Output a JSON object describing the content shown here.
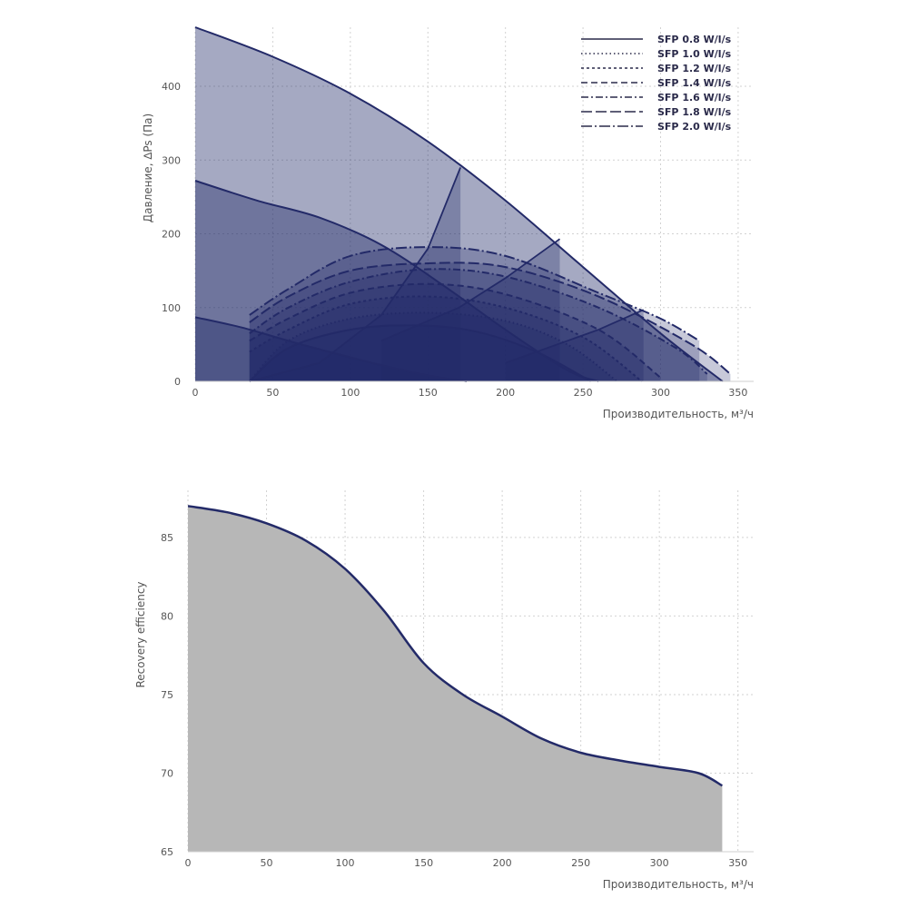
{
  "chart_data": [
    {
      "type": "area",
      "xlabel": "Производительность, м³/ч",
      "ylabel": "Давление, ∆Ps (Па)",
      "xlim": [
        0,
        360
      ],
      "ylim": [
        0,
        480
      ],
      "xticks": [
        0,
        50,
        100,
        150,
        200,
        250,
        300,
        350
      ],
      "yticks": [
        0,
        100,
        200,
        300,
        400
      ],
      "grid": true,
      "legend_position": "top-right",
      "colors": {
        "fill": "#1f2766",
        "line": "#232a68"
      },
      "fan_curves": [
        {
          "x": [
            0,
            50,
            100,
            150,
            200,
            250,
            300,
            340
          ],
          "y": [
            480,
            440,
            390,
            325,
            245,
            155,
            65,
            0
          ]
        },
        {
          "x": [
            0,
            40,
            80,
            120,
            160,
            200,
            240,
            260
          ],
          "y": [
            272,
            245,
            222,
            185,
            130,
            70,
            15,
            0
          ]
        },
        {
          "x": [
            0,
            30,
            60,
            90,
            120,
            150,
            175
          ],
          "y": [
            87,
            73,
            55,
            38,
            22,
            8,
            0
          ]
        }
      ],
      "system_curves": [
        {
          "x": [
            35,
            80,
            120,
            150,
            171,
            171
          ],
          "y": [
            0,
            25,
            90,
            180,
            290,
            0
          ]
        },
        {
          "x": [
            120,
            170,
            200,
            235,
            235
          ],
          "y": [
            55,
            100,
            140,
            193,
            0
          ]
        },
        {
          "x": [
            200,
            240,
            260,
            289,
            289
          ],
          "y": [
            25,
            55,
            70,
            97,
            0
          ]
        }
      ],
      "series": [
        {
          "name": "SFP 0.8 W/l/s",
          "x": [
            35,
            60,
            100,
            140,
            180,
            220,
            255
          ],
          "y": [
            0,
            45,
            70,
            76,
            68,
            40,
            0
          ]
        },
        {
          "name": "SFP 1.0 W/l/s",
          "x": [
            35,
            60,
            100,
            150,
            200,
            240,
            272
          ],
          "y": [
            0,
            55,
            85,
            93,
            82,
            50,
            0
          ]
        },
        {
          "name": "SFP 1.2 W/l/s",
          "x": [
            35,
            60,
            100,
            150,
            200,
            250,
            288
          ],
          "y": [
            40,
            70,
            105,
            115,
            100,
            60,
            0
          ]
        },
        {
          "name": "SFP 1.4 W/l/s",
          "x": [
            35,
            60,
            100,
            150,
            200,
            260,
            300
          ],
          "y": [
            55,
            85,
            120,
            132,
            118,
            70,
            5
          ]
        },
        {
          "name": "SFP 1.6 W/l/s",
          "x": [
            35,
            60,
            100,
            150,
            200,
            260,
            310,
            330
          ],
          "y": [
            65,
            100,
            135,
            152,
            142,
            100,
            45,
            10
          ]
        },
        {
          "name": "SFP 1.8 W/l/s",
          "x": [
            35,
            60,
            100,
            150,
            200,
            260,
            320,
            345
          ],
          "y": [
            80,
            115,
            150,
            160,
            155,
            115,
            50,
            10
          ]
        },
        {
          "name": "SFP 2.0 W/l/s",
          "x": [
            35,
            60,
            100,
            150,
            200,
            260,
            300,
            325
          ],
          "y": [
            90,
            125,
            170,
            182,
            170,
            120,
            85,
            55
          ]
        }
      ]
    },
    {
      "type": "area",
      "xlabel": "Производительность, м³/ч",
      "ylabel": "Recovery efficiency",
      "xlim": [
        0,
        360
      ],
      "ylim": [
        65,
        88
      ],
      "xticks": [
        0,
        50,
        100,
        150,
        200,
        250,
        300,
        350
      ],
      "yticks": [
        65,
        70,
        75,
        80,
        85
      ],
      "grid": true,
      "colors": {
        "fill": "#b7b7b7",
        "line": "#232a68"
      },
      "series": [
        {
          "x": [
            0,
            25,
            50,
            75,
            100,
            125,
            150,
            175,
            200,
            225,
            250,
            275,
            300,
            325,
            340
          ],
          "y": [
            87.0,
            86.6,
            85.9,
            84.8,
            83.0,
            80.3,
            77.0,
            75.0,
            73.6,
            72.2,
            71.3,
            70.8,
            70.4,
            70.0,
            69.2
          ]
        }
      ]
    }
  ]
}
